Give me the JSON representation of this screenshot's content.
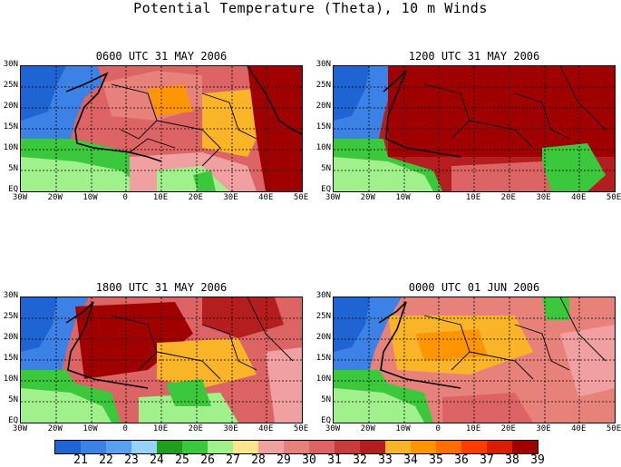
{
  "title": "Potential Temperature (Theta), 10 m Winds",
  "panels": [
    {
      "title": "0600 UTC 31 MAY 2006"
    },
    {
      "title": "1200 UTC 31 MAY 2006"
    },
    {
      "title": "1800 UTC 31 MAY 2006"
    },
    {
      "title": "0000 UTC 01 JUN 2006"
    }
  ],
  "y_ticks": [
    "30N",
    "25N",
    "20N",
    "15N",
    "10N",
    "5N",
    "EQ"
  ],
  "x_ticks": [
    "30W",
    "20W",
    "10W",
    "0",
    "10E",
    "20E",
    "30E",
    "40E",
    "50E"
  ],
  "colorbar": {
    "labels": [
      "21",
      "22",
      "23",
      "24",
      "25",
      "26",
      "27",
      "28",
      "29",
      "30",
      "31",
      "32",
      "33",
      "34",
      "35",
      "36",
      "37",
      "38",
      "39"
    ],
    "colors": [
      "#1e64d2",
      "#3c82e6",
      "#5aa0f0",
      "#96d2fa",
      "#1ea01e",
      "#3cc83c",
      "#a0f08c",
      "#fae68c",
      "#f0a0a0",
      "#e6827a",
      "#dc6464",
      "#c83c3c",
      "#b41e1e",
      "#fab428",
      "#ff9600",
      "#ff6e00",
      "#ff3c00",
      "#dc1e00",
      "#a00000"
    ]
  }
}
